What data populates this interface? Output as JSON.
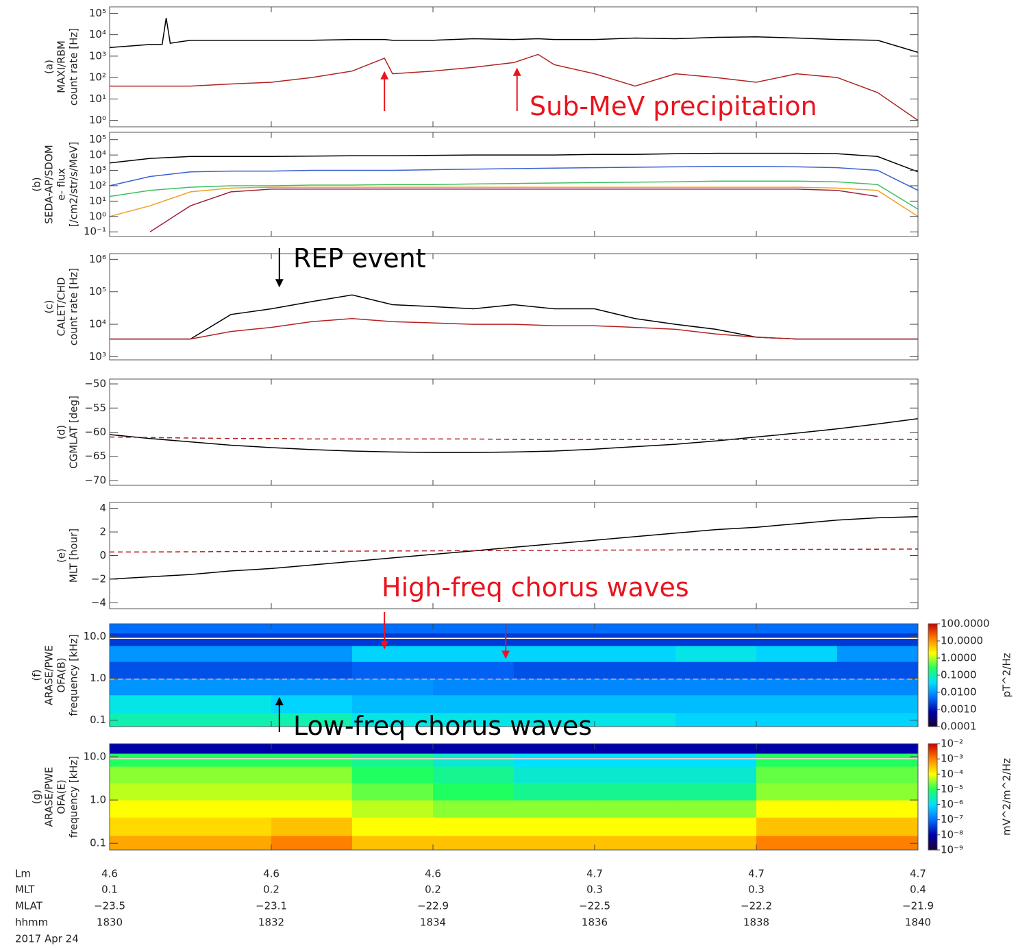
{
  "chart_data": [
    {
      "type": "line",
      "ylabel_lines": [
        "(a)",
        "MAXI/RBM",
        "count rate [Hz]"
      ],
      "log": true,
      "xlim": [
        1830,
        1840
      ],
      "ylim": [
        0.5,
        200000
      ],
      "yticks": [
        {
          "value": 1,
          "label": "10⁰"
        },
        {
          "value": 10,
          "label": "10¹"
        },
        {
          "value": 100,
          "label": "10²"
        },
        {
          "value": 1000,
          "label": "10³"
        },
        {
          "value": 10000,
          "label": "10⁴"
        },
        {
          "value": 100000,
          "label": "10⁵"
        }
      ],
      "x": [
        1830,
        1830.5,
        1830.65,
        1830.7,
        1830.75,
        1831,
        1831.5,
        1832,
        1832.5,
        1833,
        1833.4,
        1833.5,
        1834,
        1834.5,
        1835,
        1835.3,
        1835.5,
        1836,
        1836.5,
        1837,
        1837.5,
        1838,
        1838.5,
        1839,
        1839.5,
        1840
      ],
      "series": [
        {
          "color": "#000000",
          "values": [
            2500,
            3500,
            3500,
            60000,
            4000,
            5500,
            5500,
            5500,
            5500,
            6000,
            6000,
            5500,
            5500,
            6500,
            6000,
            6500,
            6000,
            6000,
            7000,
            6500,
            7500,
            8000,
            7000,
            6000,
            5500,
            1500
          ]
        },
        {
          "color": "#b22222",
          "values": [
            40,
            40,
            40,
            40,
            40,
            40,
            50,
            60,
            100,
            200,
            800,
            150,
            200,
            300,
            500,
            1200,
            400,
            150,
            40,
            150,
            100,
            60,
            150,
            100,
            20,
            1
          ]
        }
      ],
      "annotations": [
        {
          "text": "Sub-MeV precipitation",
          "color": "#e8141e",
          "arrows_at": [
            1833.4,
            1835.04
          ]
        }
      ]
    },
    {
      "type": "line",
      "ylabel_lines": [
        "(b)",
        "SEDA-AP/SDOM",
        "e- flux",
        "[/cm2/str/s/MeV]"
      ],
      "log": true,
      "xlim": [
        1830,
        1840
      ],
      "ylim": [
        0.05,
        300000
      ],
      "yticks": [
        {
          "value": 0.1,
          "label": "10⁻¹"
        },
        {
          "value": 1,
          "label": "10⁰"
        },
        {
          "value": 10,
          "label": "10¹"
        },
        {
          "value": 100,
          "label": "10²"
        },
        {
          "value": 1000,
          "label": "10³"
        },
        {
          "value": 10000,
          "label": "10⁴"
        },
        {
          "value": 100000,
          "label": "10⁵"
        }
      ],
      "x": [
        1830,
        1830.5,
        1831,
        1831.5,
        1832,
        1832.5,
        1833,
        1833.5,
        1834,
        1834.5,
        1835,
        1835.5,
        1836,
        1836.5,
        1837,
        1837.5,
        1838,
        1838.5,
        1839,
        1839.5,
        1840
      ],
      "series": [
        {
          "color": "#000000",
          "values": [
            3000,
            6000,
            8000,
            8000,
            8000,
            8500,
            9000,
            9000,
            9500,
            10000,
            10000,
            10000,
            11000,
            11000,
            12000,
            13000,
            13000,
            13000,
            12000,
            8000,
            800
          ]
        },
        {
          "color": "#3a5fd0",
          "values": [
            100,
            400,
            800,
            900,
            900,
            1000,
            1000,
            1000,
            1100,
            1200,
            1300,
            1400,
            1500,
            1600,
            1700,
            1800,
            1800,
            1700,
            1500,
            1000,
            50
          ]
        },
        {
          "color": "#3cc060",
          "values": [
            20,
            50,
            80,
            100,
            100,
            110,
            110,
            120,
            120,
            130,
            140,
            150,
            160,
            170,
            180,
            200,
            200,
            200,
            180,
            120,
            3
          ]
        },
        {
          "color": "#f0a020",
          "values": [
            1,
            5,
            40,
            70,
            80,
            80,
            80,
            80,
            80,
            80,
            80,
            80,
            80,
            80,
            80,
            80,
            80,
            80,
            70,
            50,
            1
          ]
        },
        {
          "color": "#a0203a",
          "values": [
            null,
            0.1,
            5,
            40,
            60,
            60,
            60,
            60,
            60,
            60,
            60,
            60,
            60,
            60,
            60,
            60,
            60,
            60,
            50,
            20,
            null
          ]
        }
      ]
    },
    {
      "type": "line",
      "ylabel_lines": [
        "(c)",
        "CALET/CHD",
        "count rate [Hz]"
      ],
      "log": true,
      "xlim": [
        1830,
        1840
      ],
      "ylim": [
        800,
        1500000
      ],
      "yticks": [
        {
          "value": 1000,
          "label": "10³"
        },
        {
          "value": 10000,
          "label": "10⁴"
        },
        {
          "value": 100000,
          "label": "10⁵"
        },
        {
          "value": 1000000,
          "label": "10⁶"
        }
      ],
      "x": [
        1830,
        1830.5,
        1831,
        1831.5,
        1832,
        1832.5,
        1833,
        1833.5,
        1834,
        1834.5,
        1835,
        1835.5,
        1836,
        1836.5,
        1837,
        1837.5,
        1838,
        1838.5,
        1839,
        1839.5,
        1840
      ],
      "series": [
        {
          "color": "#000000",
          "values": [
            3500,
            3500,
            3500,
            20000,
            30000,
            50000,
            80000,
            40000,
            35000,
            30000,
            40000,
            30000,
            30000,
            15000,
            10000,
            7000,
            4000,
            3500,
            3500,
            3500,
            3500
          ]
        },
        {
          "color": "#b22222",
          "values": [
            3500,
            3500,
            3500,
            6000,
            8000,
            12000,
            15000,
            12000,
            11000,
            10000,
            10000,
            9000,
            9000,
            8000,
            7000,
            5000,
            4000,
            3500,
            3500,
            3500,
            3500
          ]
        }
      ],
      "annotations": [
        {
          "text": "REP event",
          "color": "#000000",
          "arrows_at": [
            1832.1
          ]
        }
      ]
    },
    {
      "type": "line",
      "ylabel_lines": [
        "(d)",
        "CGMLAT [deg]"
      ],
      "log": false,
      "xlim": [
        1830,
        1840
      ],
      "ylim": [
        -71,
        -49
      ],
      "yticks": [
        {
          "value": -50,
          "label": "−50"
        },
        {
          "value": -55,
          "label": "−55"
        },
        {
          "value": -60,
          "label": "−60"
        },
        {
          "value": -65,
          "label": "−65"
        },
        {
          "value": -70,
          "label": "−70"
        }
      ],
      "x": [
        1830,
        1830.5,
        1831,
        1831.5,
        1832,
        1832.5,
        1833,
        1833.5,
        1834,
        1834.5,
        1835,
        1835.5,
        1836,
        1836.5,
        1837,
        1837.5,
        1838,
        1838.5,
        1839,
        1839.5,
        1840
      ],
      "series": [
        {
          "color": "#000000",
          "values": [
            -60.5,
            -61.3,
            -62,
            -62.7,
            -63.2,
            -63.6,
            -63.9,
            -64.1,
            -64.2,
            -64.2,
            -64.1,
            -63.9,
            -63.5,
            -63,
            -62.5,
            -61.8,
            -61,
            -60.2,
            -59.3,
            -58.3,
            -57.2
          ]
        },
        {
          "color": "#b22222",
          "dash": true,
          "values": [
            -61,
            -61.1,
            -61.2,
            -61.3,
            -61.3,
            -61.4,
            -61.4,
            -61.4,
            -61.4,
            -61.4,
            -61.5,
            -61.5,
            -61.5,
            -61.5,
            -61.5,
            -61.5,
            -61.5,
            -61.5,
            -61.5,
            -61.5,
            -61.5
          ]
        }
      ]
    },
    {
      "type": "line",
      "ylabel_lines": [
        "(e)",
        "MLT [hour]"
      ],
      "log": false,
      "xlim": [
        1830,
        1840
      ],
      "ylim": [
        -4.5,
        4.5
      ],
      "yticks": [
        {
          "value": -4,
          "label": "−4"
        },
        {
          "value": -2,
          "label": "−2"
        },
        0,
        2,
        4
      ],
      "x": [
        1830,
        1830.5,
        1831,
        1831.5,
        1832,
        1832.5,
        1833,
        1833.5,
        1834,
        1834.5,
        1835,
        1835.5,
        1836,
        1836.5,
        1837,
        1837.5,
        1838,
        1838.5,
        1839,
        1839.5,
        1840
      ],
      "series": [
        {
          "color": "#000000",
          "values": [
            -2,
            -1.8,
            -1.6,
            -1.3,
            -1.1,
            -0.8,
            -0.5,
            -0.2,
            0.1,
            0.4,
            0.7,
            1,
            1.3,
            1.6,
            1.9,
            2.2,
            2.4,
            2.7,
            3,
            3.2,
            3.3
          ]
        },
        {
          "color": "#b22222",
          "dash": true,
          "values": [
            0.3,
            0.31,
            0.32,
            0.34,
            0.35,
            0.36,
            0.38,
            0.39,
            0.4,
            0.42,
            0.43,
            0.44,
            0.46,
            0.47,
            0.48,
            0.5,
            0.51,
            0.52,
            0.53,
            0.54,
            0.55
          ]
        }
      ]
    },
    {
      "type": "heatmap",
      "ylabel_lines": [
        "(f)",
        "ARASE/PWE",
        "OFA(B)",
        "frequency [kHz]"
      ],
      "log": true,
      "xlim": [
        1830,
        1840
      ],
      "ylim": [
        0.07,
        20
      ],
      "yticks": [
        0.1,
        {
          "value": 1,
          "label": "1.0"
        },
        {
          "value": 10,
          "label": "10.0"
        }
      ],
      "x": [
        1830,
        1831,
        1832,
        1833,
        1834,
        1835,
        1836,
        1837,
        1838,
        1839,
        1840
      ],
      "y_edges": [
        0.07,
        0.15,
        0.4,
        1,
        2.5,
        6,
        12,
        20
      ],
      "z": [
        [
          0.1,
          0.1,
          0.1,
          0.05,
          0.05,
          0.05,
          0.05,
          0.03,
          0.03,
          0.03
        ],
        [
          0.05,
          0.05,
          0.03,
          0.02,
          0.02,
          0.02,
          0.02,
          0.02,
          0.02,
          0.02
        ],
        [
          0.01,
          0.01,
          0.01,
          0.01,
          0.008,
          0.008,
          0.008,
          0.008,
          0.008,
          0.008
        ],
        [
          0.003,
          0.003,
          0.003,
          0.004,
          0.004,
          0.003,
          0.003,
          0.003,
          0.003,
          0.003
        ],
        [
          0.01,
          0.01,
          0.01,
          0.03,
          0.03,
          0.03,
          0.03,
          0.05,
          0.03,
          0.01
        ],
        [
          0.002,
          0.002,
          0.002,
          0.002,
          0.002,
          0.002,
          0.002,
          0.002,
          0.002,
          0.002
        ],
        [
          0.005,
          0.005,
          0.005,
          0.005,
          0.005,
          0.005,
          0.005,
          0.005,
          0.005,
          0.005
        ]
      ],
      "zlim": [
        0.0001,
        100
      ],
      "zticks": [
        {
          "value": 0.0001,
          "label": "0.0001"
        },
        {
          "value": 0.001,
          "label": "0.0010"
        },
        {
          "value": 0.01,
          "label": "0.0100"
        },
        {
          "value": 0.1,
          "label": "0.1000"
        },
        {
          "value": 1,
          "label": "1.0000"
        },
        {
          "value": 10,
          "label": "10.0000"
        },
        {
          "value": 100,
          "label": "100.0000"
        }
      ],
      "zlabel": "pT^2/Hz",
      "colormap": [
        "#1a0033",
        "#0000aa",
        "#0070ff",
        "#00e0ff",
        "#20ff60",
        "#ffff00",
        "#ff8000",
        "#cc0000"
      ],
      "series": [
        {
          "color": "#ffffff",
          "values": [
            9,
            9,
            9,
            9,
            9,
            9,
            9,
            9,
            9,
            9,
            9
          ]
        },
        {
          "color": "#ffb0b0",
          "dash": true,
          "values": [
            0.95,
            0.95,
            0.95,
            0.95,
            0.95,
            0.95,
            0.95,
            0.95,
            0.95,
            0.95,
            0.95
          ]
        }
      ],
      "annotations": [
        {
          "text": "High-freq chorus waves",
          "color": "#e8141e",
          "arrows_at": [
            1833.4,
            1834.9
          ]
        },
        {
          "text": "Low-freq chorus waves",
          "color": "#000000",
          "arrows_at": [
            1832.1
          ]
        }
      ]
    },
    {
      "type": "heatmap",
      "ylabel_lines": [
        "(g)",
        "ARASE/PWE",
        "OFA(E)",
        "frequency [kHz]"
      ],
      "log": true,
      "xlim": [
        1830,
        1840
      ],
      "ylim": [
        0.07,
        20
      ],
      "yticks": [
        0.1,
        {
          "value": 1,
          "label": "1.0"
        },
        {
          "value": 10,
          "label": "10.0"
        }
      ],
      "x": [
        1830,
        1831,
        1832,
        1833,
        1834,
        1835,
        1836,
        1837,
        1838,
        1839,
        1840
      ],
      "y_edges": [
        0.07,
        0.15,
        0.4,
        1,
        2.5,
        6,
        12,
        20
      ],
      "z": [
        [
          0.0005,
          0.0005,
          0.001,
          0.0003,
          0.0003,
          0.0003,
          0.0003,
          0.0003,
          0.001,
          0.001
        ],
        [
          0.0002,
          0.0002,
          0.0003,
          0.0001,
          0.0001,
          0.0001,
          0.0001,
          0.0001,
          0.0003,
          0.0003
        ],
        [
          0.0001,
          0.0001,
          0.0001,
          5e-05,
          3e-05,
          3e-05,
          3e-05,
          3e-05,
          0.0001,
          0.0001
        ],
        [
          5e-05,
          5e-05,
          5e-05,
          2e-05,
          1e-05,
          5e-06,
          5e-06,
          5e-06,
          3e-05,
          3e-05
        ],
        [
          3e-05,
          3e-05,
          3e-05,
          1e-05,
          5e-06,
          2e-06,
          2e-06,
          2e-06,
          2e-05,
          2e-05
        ],
        [
          1e-05,
          1e-05,
          1e-05,
          5e-06,
          2e-06,
          1e-06,
          1e-06,
          1e-06,
          1e-05,
          1e-05
        ],
        [
          1e-08,
          1e-08,
          1e-08,
          1e-08,
          1e-08,
          1e-08,
          1e-08,
          1e-08,
          1e-08,
          1e-08
        ]
      ],
      "zlim": [
        1e-09,
        0.01
      ],
      "zticks": [
        {
          "value": 1e-09,
          "label": "10⁻⁹"
        },
        {
          "value": 1e-08,
          "label": "10⁻⁸"
        },
        {
          "value": 1e-07,
          "label": "10⁻⁷"
        },
        {
          "value": 1e-06,
          "label": "10⁻⁶"
        },
        {
          "value": 1e-05,
          "label": "10⁻⁵"
        },
        {
          "value": 0.0001,
          "label": "10⁻⁴"
        },
        {
          "value": 0.001,
          "label": "10⁻³"
        },
        {
          "value": 0.01,
          "label": "10⁻²"
        }
      ],
      "zlabel": "mV^2/m^2/Hz",
      "colormap": [
        "#1a0033",
        "#0000aa",
        "#0070ff",
        "#00e0ff",
        "#20ff60",
        "#ffff00",
        "#ff8000",
        "#cc0000"
      ],
      "series": [
        {
          "color": "#ffd0d0",
          "values": [
            9,
            9,
            9,
            9,
            9,
            9,
            9,
            9,
            9,
            9,
            9
          ]
        }
      ]
    }
  ],
  "time_axis": {
    "row_labels": [
      "Lm",
      "MLT",
      "MLAT",
      "hhmm"
    ],
    "rows": [
      [
        "4.6",
        "4.6",
        "4.6",
        "4.7",
        "4.7",
        "4.7"
      ],
      [
        "0.1",
        "0.2",
        "0.2",
        "0.3",
        "0.3",
        "0.4"
      ],
      [
        "−23.5",
        "−23.1",
        "−22.9",
        "−22.5",
        "−22.2",
        "−21.9"
      ],
      [
        1830,
        1832,
        1834,
        1836,
        1838,
        1840
      ]
    ],
    "date": "2017 Apr 24"
  }
}
